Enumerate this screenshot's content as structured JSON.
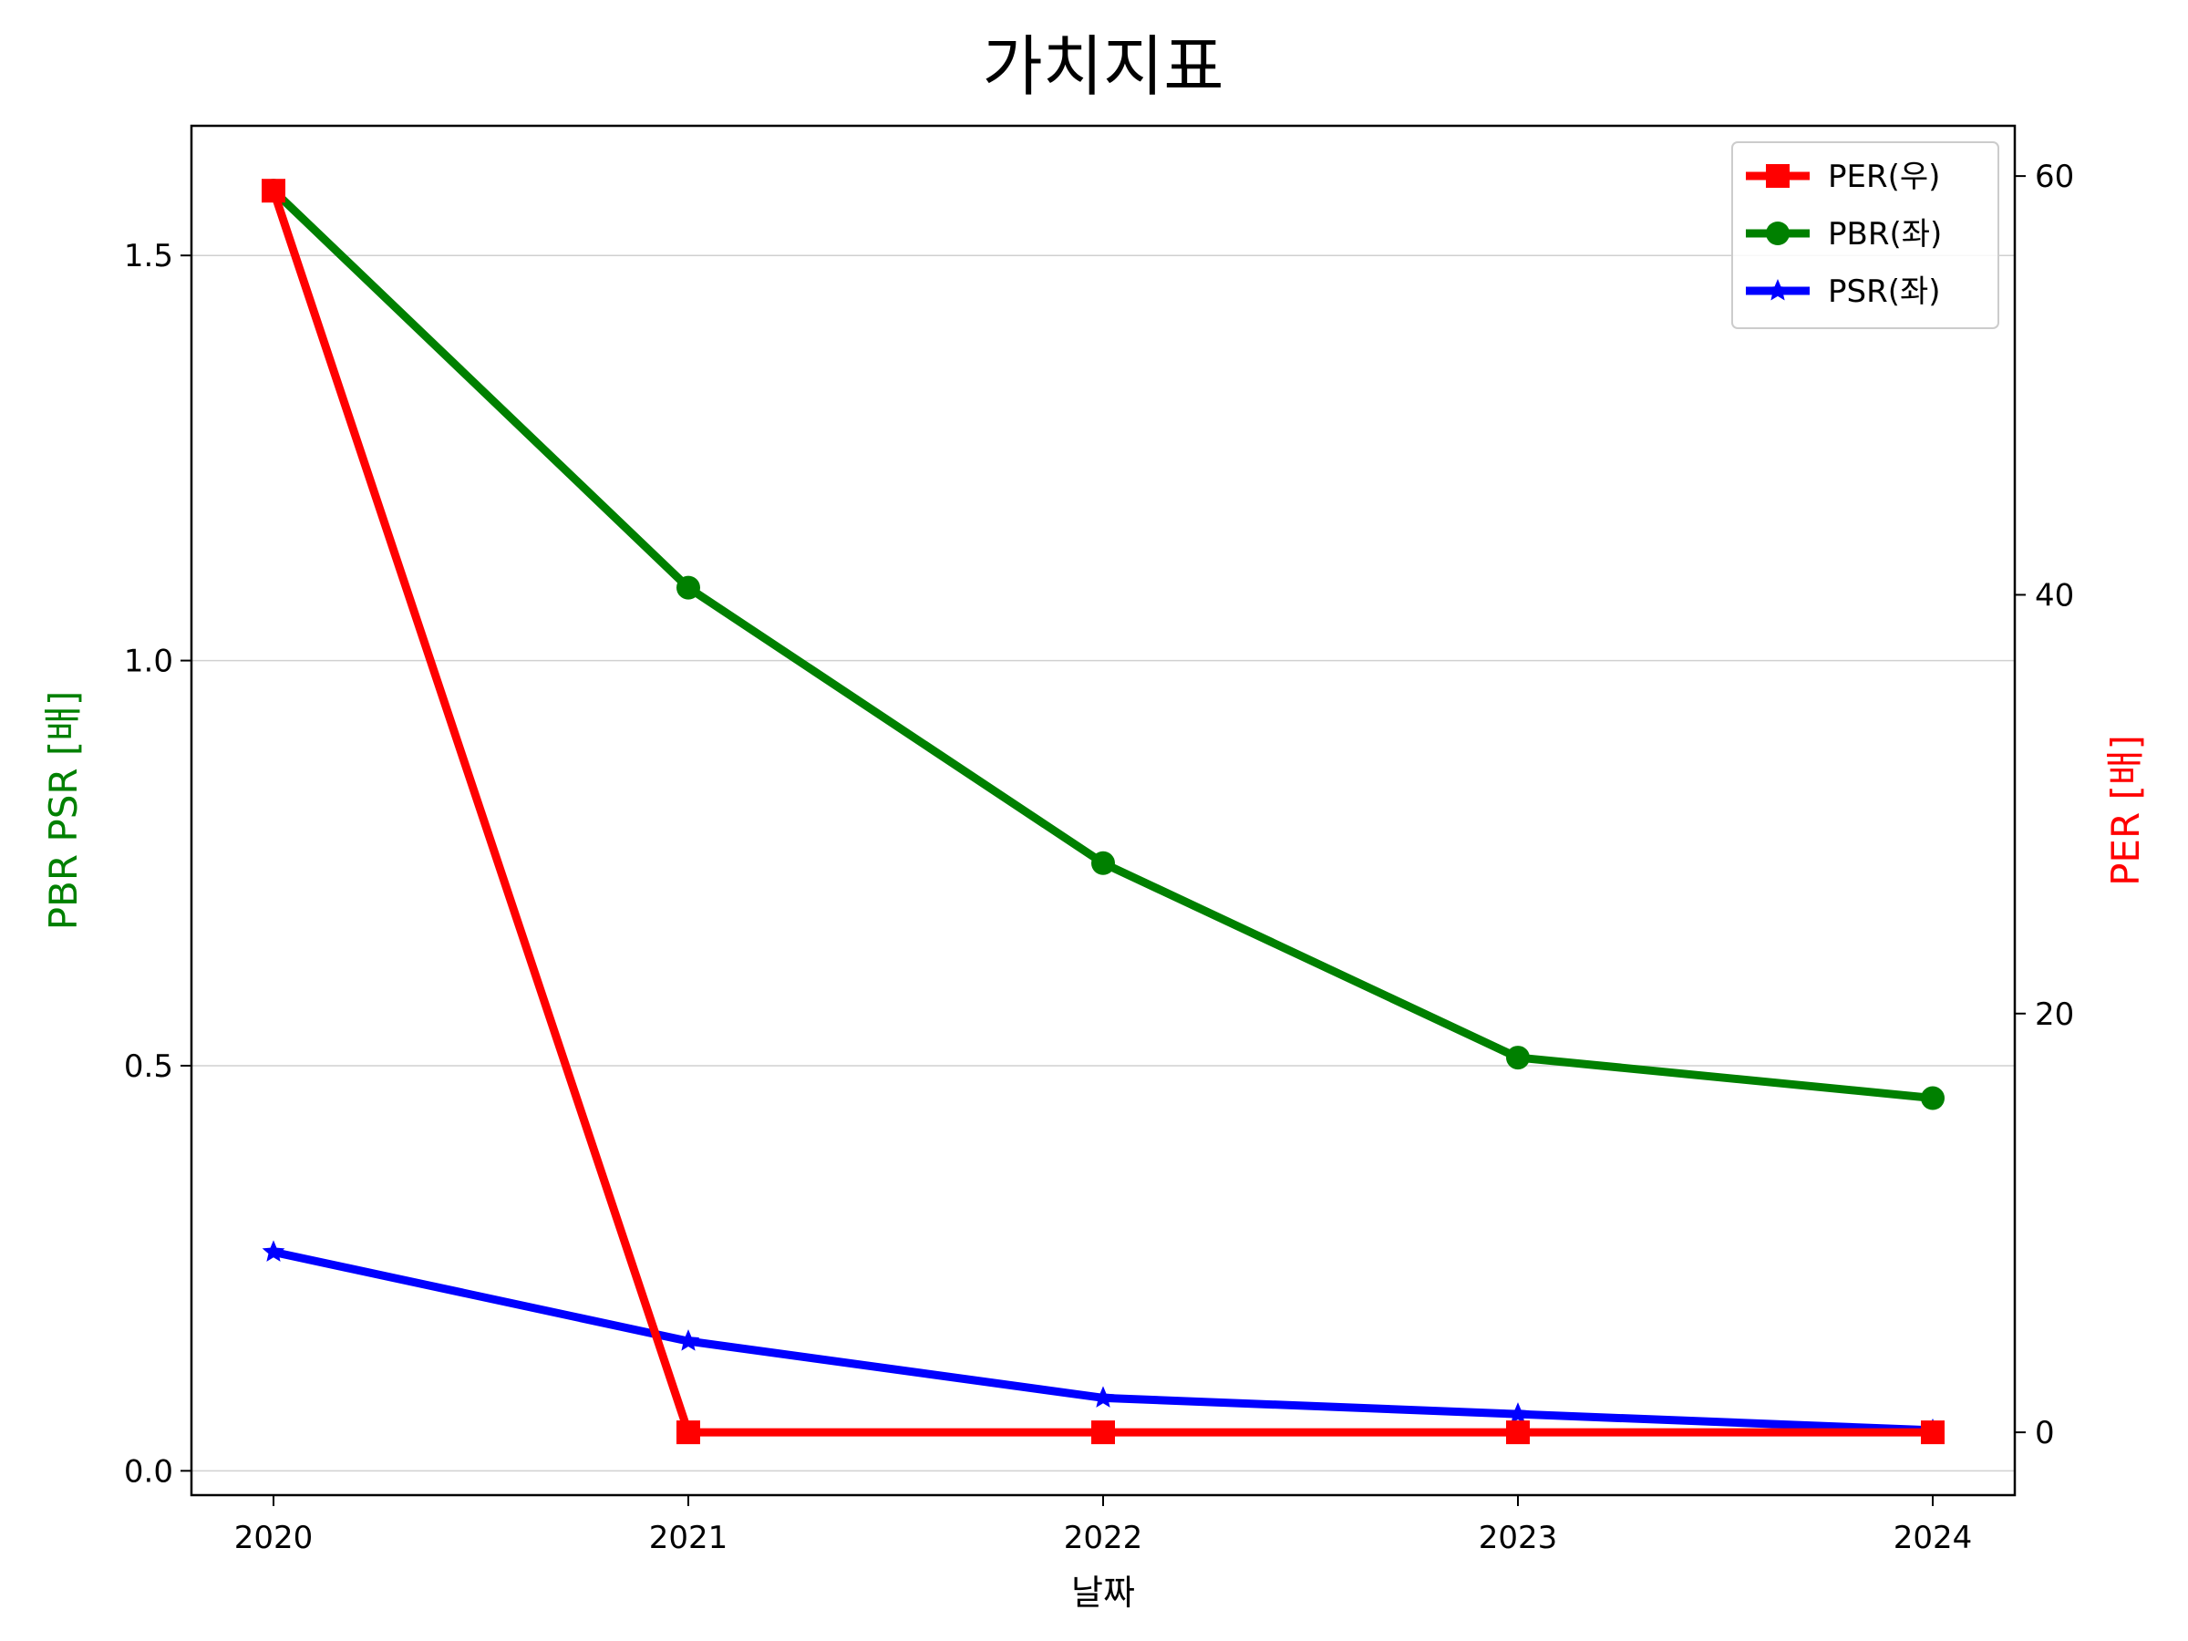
{
  "chart_data": {
    "type": "line",
    "title": "가치지표",
    "xlabel": "날짜",
    "ylabel_left": "PBR PSR [배]",
    "ylabel_right": "PER [배]",
    "ylabel_left_color": "#008000",
    "ylabel_right_color": "#ff0000",
    "x": [
      "2020",
      "2021",
      "2022",
      "2023",
      "2024"
    ],
    "ylim_left": [
      -0.03,
      1.66
    ],
    "ylim_right": [
      -3,
      62.4
    ],
    "yticks_left": [
      "0.0",
      "0.5",
      "1.0",
      "1.5"
    ],
    "yticks_left_values": [
      0.0,
      0.5,
      1.0,
      1.5
    ],
    "yticks_right": [
      "0",
      "20",
      "40",
      "60"
    ],
    "yticks_right_values": [
      0,
      20,
      40,
      60
    ],
    "grid": "horizontal",
    "legend_position": "top-right",
    "series": [
      {
        "name": "PER(우)",
        "axis": "right",
        "color": "#ff0000",
        "marker": "square",
        "values": [
          59.3,
          0,
          0,
          0,
          0
        ]
      },
      {
        "name": "PBR(좌)",
        "axis": "left",
        "color": "#008000",
        "marker": "circle",
        "values": [
          1.58,
          1.09,
          0.75,
          0.51,
          0.46
        ]
      },
      {
        "name": "PSR(좌)",
        "axis": "left",
        "color": "#0000ff",
        "marker": "star",
        "values": [
          0.27,
          0.16,
          0.09,
          0.07,
          0.05
        ]
      }
    ]
  }
}
